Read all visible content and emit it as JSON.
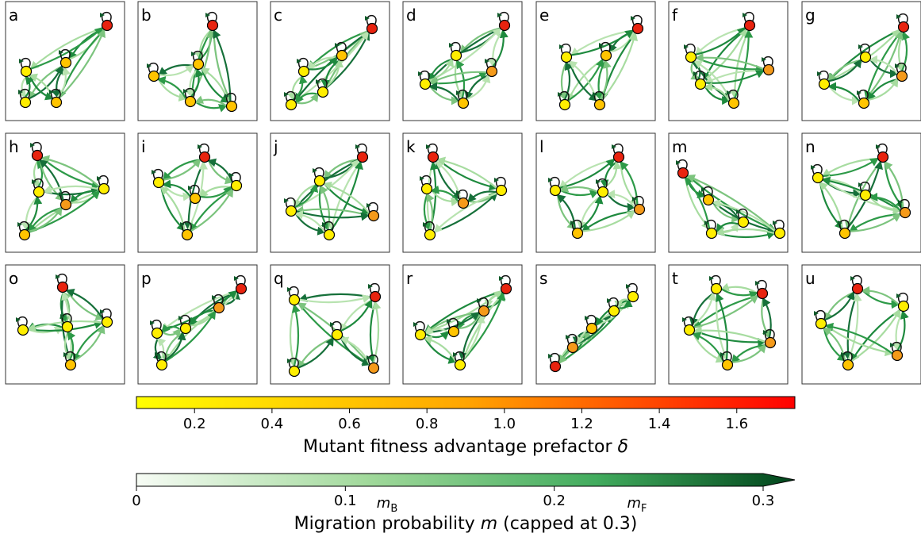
{
  "figure": {
    "panel_letters": [
      "a",
      "b",
      "c",
      "d",
      "e",
      "f",
      "g",
      "h",
      "i",
      "j",
      "k",
      "l",
      "m",
      "n",
      "o",
      "p",
      "q",
      "r",
      "s",
      "t",
      "u"
    ]
  },
  "colorbar_fitness": {
    "title_text": "Mutant fitness advantage prefactor ",
    "title_symbol": "δ",
    "min": 0.05,
    "max": 1.75,
    "ticks": [
      "0.2",
      "0.4",
      "0.6",
      "0.8",
      "1.0",
      "1.2",
      "1.4",
      "1.6"
    ],
    "tick_values": [
      0.2,
      0.4,
      0.6,
      0.8,
      1.0,
      1.2,
      1.4,
      1.6
    ],
    "colors": [
      "#ffff00",
      "#ffa500",
      "#ff0000"
    ]
  },
  "colorbar_migration": {
    "title_text": "Migration probability ",
    "title_symbol": "m",
    "title_suffix": " (capped at 0.3)",
    "min": 0,
    "max": 0.3,
    "ticks": [
      "0",
      "0.1",
      "0.2",
      "0.3"
    ],
    "tick_values": [
      0,
      0.1,
      0.2,
      0.3
    ],
    "annotation_b": "m",
    "annotation_b_sub": "B",
    "annotation_b_value": 0.12,
    "annotation_f": "m",
    "annotation_f_sub": "F",
    "annotation_f_value": 0.24,
    "colors": [
      "#f7fcf5",
      "#a1d99b",
      "#41ab5d",
      "#00441b"
    ]
  }
}
